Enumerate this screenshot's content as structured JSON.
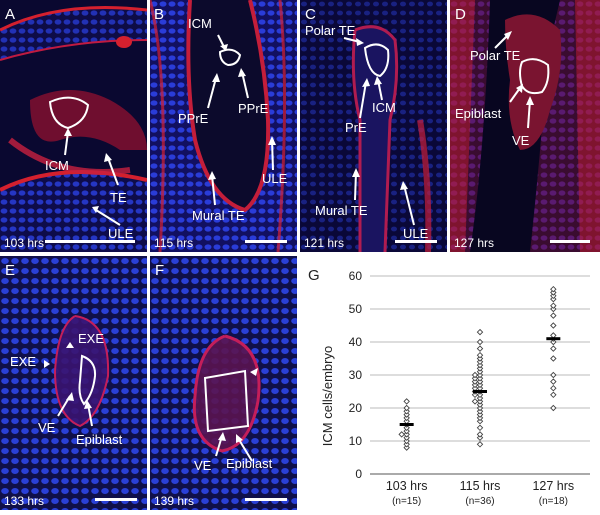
{
  "panels": {
    "A": {
      "letter": "A",
      "labels": [
        "ICM",
        "TE",
        "ULE"
      ],
      "time": "103 hrs"
    },
    "B": {
      "letter": "B",
      "labels": [
        "ICM",
        "PPrE",
        "PPrE",
        "ULE",
        "Mural TE"
      ],
      "time": "115 hrs"
    },
    "C": {
      "letter": "C",
      "labels": [
        "Polar TE",
        "ICM",
        "PrE",
        "Mural TE",
        "ULE"
      ],
      "time": "121 hrs"
    },
    "D": {
      "letter": "D",
      "labels": [
        "Polar TE",
        "Epiblast",
        "VE"
      ],
      "time": "127 hrs"
    },
    "E": {
      "letter": "E",
      "labels": [
        "EXE",
        "EXE",
        "VE",
        "Epiblast"
      ],
      "time": "133 hrs"
    },
    "F": {
      "letter": "F",
      "labels": [
        "VE",
        "Epiblast"
      ],
      "time": "139 hrs"
    }
  },
  "colors": {
    "nuclei": "#2a3cd8",
    "membrane": "#d4202e",
    "outline": "#ffffff"
  },
  "chart_data": {
    "letter": "G",
    "type": "scatter",
    "ylabel": "ICM cells/embryo",
    "ylim": [
      0,
      60
    ],
    "yticks": [
      "0",
      "10",
      "20",
      "30",
      "40",
      "50",
      "60"
    ],
    "grid": true,
    "categories": [
      "103 hrs",
      "115 hrs",
      "127 hrs"
    ],
    "counts": [
      "(n=15)",
      "(n=36)",
      "(n=18)"
    ],
    "groups": [
      {
        "values": [
          8,
          9,
          10,
          11,
          12,
          12,
          13,
          14,
          15,
          16,
          17,
          18,
          19,
          20,
          22
        ],
        "mean": 15
      },
      {
        "values": [
          9,
          11,
          12,
          14,
          16,
          17,
          18,
          19,
          20,
          21,
          22,
          22,
          23,
          24,
          24,
          25,
          25,
          26,
          26,
          27,
          27,
          28,
          28,
          29,
          29,
          30,
          30,
          31,
          32,
          33,
          34,
          35,
          36,
          38,
          40,
          43
        ],
        "mean": 25
      },
      {
        "values": [
          20,
          24,
          26,
          28,
          30,
          35,
          38,
          40,
          41,
          42,
          45,
          48,
          50,
          51,
          53,
          54,
          55,
          56
        ],
        "mean": 41
      }
    ]
  }
}
